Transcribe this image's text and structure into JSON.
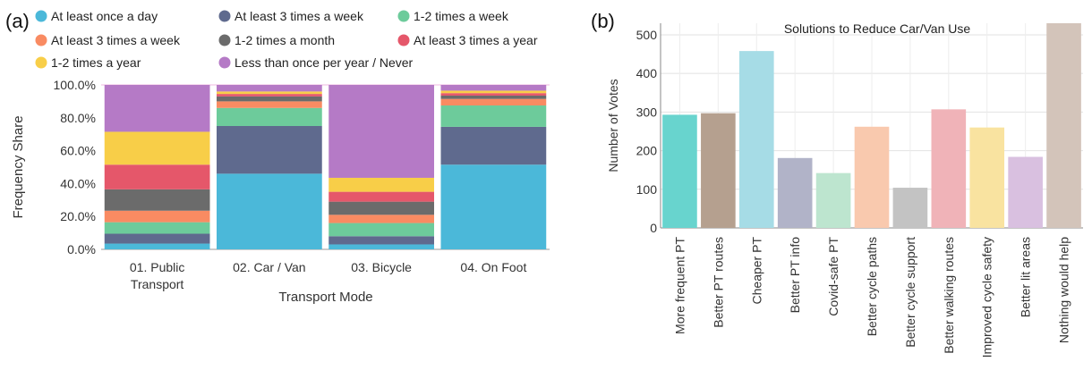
{
  "panel_labels": {
    "a": "(a)",
    "b": "(b)"
  },
  "chart_data": [
    {
      "type": "bar",
      "stacked": true,
      "categories": [
        "01. Public Transport",
        "02. Car / Van",
        "03. Bicycle",
        "04. On Foot"
      ],
      "category_labels": [
        [
          "01. Public",
          "Transport"
        ],
        [
          "02. Car / Van"
        ],
        [
          "03. Bicycle"
        ],
        [
          "04. On Foot"
        ]
      ],
      "xlabel": "Transport Mode",
      "ylabel": "Frequency Share",
      "ylim": [
        0,
        100
      ],
      "yticks": [
        "0.0%",
        "20.0%",
        "40.0%",
        "60.0%",
        "80.0%",
        "100.0%"
      ],
      "legend_position": "top",
      "series": [
        {
          "name": "At least once a day",
          "color": "#4BB8D9",
          "values": [
            3.5,
            46,
            3,
            51.5
          ]
        },
        {
          "name": "At least 3 times a week",
          "color": "#5F6A8E",
          "values": [
            6,
            29,
            5,
            23
          ]
        },
        {
          "name": "1-2 times a week",
          "color": "#6DCB9B",
          "values": [
            7,
            11,
            8,
            13
          ]
        },
        {
          "name": "At least 3 times a week",
          "color": "#F98B62",
          "values": [
            7,
            4,
            5,
            4
          ]
        },
        {
          "name": "1-2 times a month",
          "color": "#6B6B6B",
          "values": [
            13,
            3,
            8,
            2
          ]
        },
        {
          "name": "At least 3 times a year",
          "color": "#E5576A",
          "values": [
            15,
            1.5,
            6,
            1.5
          ]
        },
        {
          "name": "1-2 times a year",
          "color": "#F8CE48",
          "values": [
            20,
            1.5,
            8.5,
            1.5
          ]
        },
        {
          "name": "Less than once per year / Never",
          "color": "#B57AC6",
          "values": [
            28.5,
            4,
            56.5,
            3.5
          ]
        }
      ]
    },
    {
      "type": "bar",
      "title": "Solutions to Reduce Car/Van Use",
      "xlabel": "",
      "ylabel": "Number of Votes",
      "ylim": [
        0,
        530
      ],
      "yticks": [
        "0",
        "100",
        "200",
        "300",
        "400",
        "500"
      ],
      "grid": true,
      "categories": [
        "More frequent PT",
        "Better PT routes",
        "Cheaper PT",
        "Better PT info",
        "Covid-safe PT",
        "Better cycle paths",
        "Better cycle support",
        "Better walking  routes",
        "Improved cycle safety",
        "Better lit areas",
        "Nothing would help"
      ],
      "values": [
        293,
        297,
        458,
        181,
        142,
        262,
        104,
        307,
        260,
        184,
        530
      ],
      "colors": [
        "#68D4CE",
        "#B5A08F",
        "#A6DCE6",
        "#B1B3C8",
        "#BDE5CF",
        "#F9C9AE",
        "#C3C3C3",
        "#F0B3B8",
        "#F9E3A0",
        "#D9C0E0",
        "#D3C4BA"
      ]
    }
  ]
}
